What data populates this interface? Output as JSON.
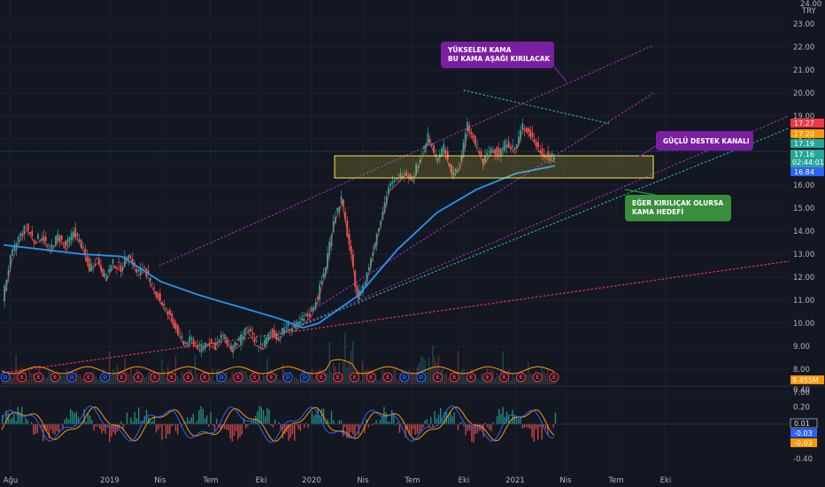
{
  "chart_data": {
    "type": "candlestick",
    "currency": "TRY",
    "y_top_label": "24.00",
    "ylim": [
      6.6,
      23.5
    ],
    "y_ticks": [
      "23.00",
      "22.00",
      "21.00",
      "20.00",
      "19.00",
      "18.00",
      "17.00",
      "16.00",
      "15.00",
      "14.00",
      "13.00",
      "12.00",
      "11.00",
      "10.00",
      "9.00",
      "8.00",
      "7.00"
    ],
    "x_ticks": [
      "Ağu",
      "2019",
      "Nis",
      "Tem",
      "Eki",
      "2020",
      "Nis",
      "Tem",
      "Eki",
      "2021",
      "Nis",
      "Tem",
      "Eki"
    ],
    "price_markers": [
      {
        "value": "17.27",
        "color": "#f23645"
      },
      {
        "value": "17.20",
        "color": "#ff9800"
      },
      {
        "value": "17.19",
        "color": "#26a69a"
      },
      {
        "value": "17.16",
        "color": "#26a69a",
        "sub": "02:44:01"
      },
      {
        "value": "16.84",
        "color": "#2962ff"
      }
    ],
    "price_series": [
      {
        "x": 0,
        "y": 11.1
      },
      {
        "x": 1,
        "y": 12.8
      },
      {
        "x": 2,
        "y": 13.7
      },
      {
        "x": 3,
        "y": 14.2
      },
      {
        "x": 4,
        "y": 13.6
      },
      {
        "x": 5,
        "y": 13.8
      },
      {
        "x": 6,
        "y": 13.2
      },
      {
        "x": 7,
        "y": 13.8
      },
      {
        "x": 8,
        "y": 13.3
      },
      {
        "x": 9,
        "y": 14.0
      },
      {
        "x": 10,
        "y": 13.4
      },
      {
        "x": 11,
        "y": 12.4
      },
      {
        "x": 12,
        "y": 12.8
      },
      {
        "x": 13,
        "y": 12.0
      },
      {
        "x": 14,
        "y": 12.6
      },
      {
        "x": 15,
        "y": 12.4
      },
      {
        "x": 16,
        "y": 13.1
      },
      {
        "x": 17,
        "y": 12.2
      },
      {
        "x": 18,
        "y": 12.4
      },
      {
        "x": 19,
        "y": 11.6
      },
      {
        "x": 20,
        "y": 11.0
      },
      {
        "x": 21,
        "y": 10.4
      },
      {
        "x": 22,
        "y": 9.8
      },
      {
        "x": 23,
        "y": 9.1
      },
      {
        "x": 24,
        "y": 9.3
      },
      {
        "x": 25,
        "y": 8.9
      },
      {
        "x": 26,
        "y": 9.2
      },
      {
        "x": 27,
        "y": 9.0
      },
      {
        "x": 28,
        "y": 9.5
      },
      {
        "x": 29,
        "y": 8.9
      },
      {
        "x": 30,
        "y": 9.2
      },
      {
        "x": 31,
        "y": 9.8
      },
      {
        "x": 32,
        "y": 9.2
      },
      {
        "x": 33,
        "y": 9.0
      },
      {
        "x": 34,
        "y": 9.6
      },
      {
        "x": 35,
        "y": 9.4
      },
      {
        "x": 36,
        "y": 9.9
      },
      {
        "x": 37,
        "y": 9.8
      },
      {
        "x": 38,
        "y": 10.1
      },
      {
        "x": 39,
        "y": 10.4
      },
      {
        "x": 40,
        "y": 11.2
      },
      {
        "x": 41,
        "y": 12.5
      },
      {
        "x": 42,
        "y": 14.5
      },
      {
        "x": 43,
        "y": 15.4
      },
      {
        "x": 44,
        "y": 13.4
      },
      {
        "x": 45,
        "y": 11.2
      },
      {
        "x": 46,
        "y": 11.8
      },
      {
        "x": 47,
        "y": 13.2
      },
      {
        "x": 48,
        "y": 14.6
      },
      {
        "x": 49,
        "y": 15.9
      },
      {
        "x": 50,
        "y": 16.2
      },
      {
        "x": 51,
        "y": 16.6
      },
      {
        "x": 52,
        "y": 16.3
      },
      {
        "x": 53,
        "y": 17.2
      },
      {
        "x": 54,
        "y": 18.1
      },
      {
        "x": 55,
        "y": 17.2
      },
      {
        "x": 56,
        "y": 17.6
      },
      {
        "x": 57,
        "y": 16.5
      },
      {
        "x": 58,
        "y": 16.9
      },
      {
        "x": 59,
        "y": 18.6
      },
      {
        "x": 60,
        "y": 17.8
      },
      {
        "x": 61,
        "y": 17.0
      },
      {
        "x": 62,
        "y": 17.6
      },
      {
        "x": 63,
        "y": 17.4
      },
      {
        "x": 64,
        "y": 17.9
      },
      {
        "x": 65,
        "y": 17.5
      },
      {
        "x": 66,
        "y": 18.6
      },
      {
        "x": 67,
        "y": 18.2
      },
      {
        "x": 68,
        "y": 17.6
      },
      {
        "x": 69,
        "y": 17.3
      },
      {
        "x": 70,
        "y": 17.16
      }
    ],
    "ma_series": [
      {
        "x": 0,
        "y": 13.4
      },
      {
        "x": 5,
        "y": 13.2
      },
      {
        "x": 10,
        "y": 13.0
      },
      {
        "x": 15,
        "y": 12.9
      },
      {
        "x": 20,
        "y": 11.8
      },
      {
        "x": 25,
        "y": 11.2
      },
      {
        "x": 30,
        "y": 10.7
      },
      {
        "x": 35,
        "y": 10.2
      },
      {
        "x": 38,
        "y": 9.8
      },
      {
        "x": 40,
        "y": 10.0
      },
      {
        "x": 45,
        "y": 11.2
      },
      {
        "x": 50,
        "y": 13.2
      },
      {
        "x": 55,
        "y": 14.8
      },
      {
        "x": 60,
        "y": 15.8
      },
      {
        "x": 65,
        "y": 16.5
      },
      {
        "x": 70,
        "y": 16.84
      }
    ],
    "oscillator": {
      "ylim": [
        -0.45,
        0.45
      ],
      "y_ticks": [
        "0.40",
        "0.20",
        "-0.20",
        "-0.40"
      ],
      "markers": [
        {
          "value": "0.01",
          "color": "#e0e3eb",
          "bg": "#131722"
        },
        {
          "value": "-0.03",
          "color": "#ffffff",
          "bg": "#2962ff"
        },
        {
          "value": "-0.03",
          "color": "#ffffff",
          "bg": "#ff9800"
        }
      ]
    },
    "volume_marker": "8.455M",
    "events": [
      "D",
      "E",
      "E",
      "E",
      "D",
      "E",
      "D",
      "E",
      "E",
      "E",
      "E",
      "E",
      "E",
      "D",
      "E",
      "E",
      "E",
      "D",
      "D",
      "E",
      "E",
      "E",
      "E",
      "E",
      "D",
      "D",
      "E",
      "E",
      "E",
      "E",
      "E",
      "E",
      "E",
      "E"
    ],
    "annotations": [
      {
        "line1": "YÜKSELEN KAMA",
        "line2": "BU KAMA AŞAĞI KIRILACAK",
        "bg": "#7b1fa2"
      },
      {
        "line1": "GÜÇLÜ DESTEK KANALI",
        "line2": "",
        "bg": "#7b1fa2"
      },
      {
        "line1": "EĞER KIRILIÇAK OLURSA",
        "line2": "KAMA HEDEFİ",
        "bg": "#388e3c"
      }
    ],
    "colors": {
      "background": "#131722",
      "up": "#26a69a",
      "down": "#ef5350",
      "ma": "#2196f3",
      "box": "#fbe74a"
    }
  }
}
